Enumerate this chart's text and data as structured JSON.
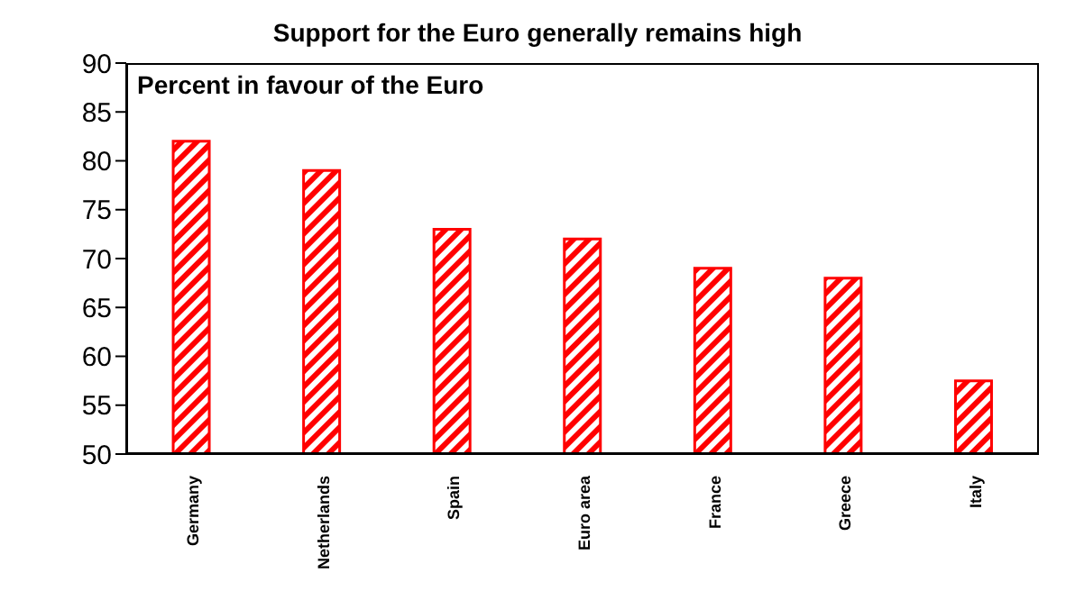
{
  "chart_data": {
    "type": "bar",
    "title": "Support for the Euro generally remains high",
    "subtitle": "Percent in favour of the Euro",
    "categories": [
      "Germany",
      "Netherlands",
      "Spain",
      "Euro area",
      "France",
      "Greece",
      "Italy"
    ],
    "values": [
      82,
      79,
      73,
      72,
      69,
      68,
      57.5
    ],
    "color": "#ff0000",
    "ylim": [
      50,
      90
    ],
    "yticks": [
      50,
      55,
      60,
      65,
      70,
      75,
      80,
      85,
      90
    ],
    "grid": false
  }
}
